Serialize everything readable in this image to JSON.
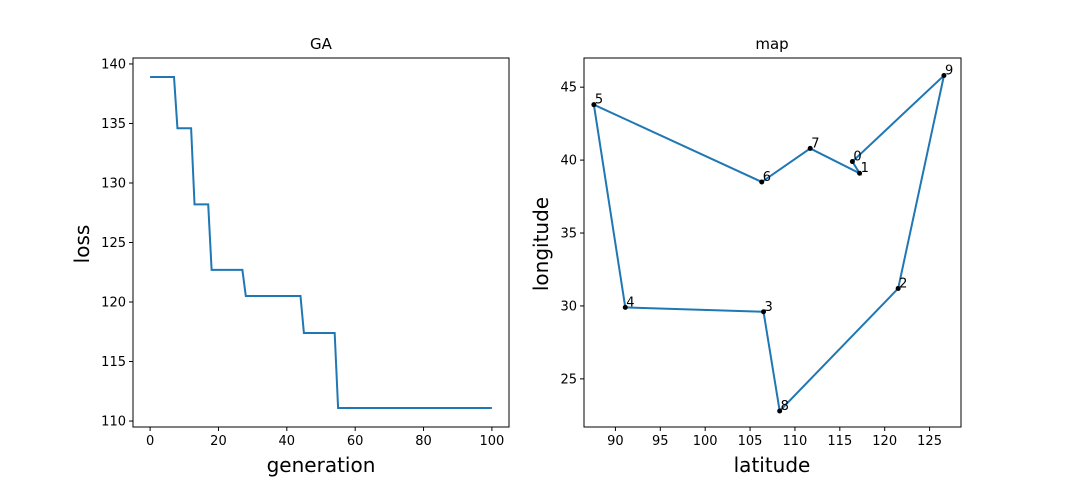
{
  "chart_data": [
    {
      "type": "line",
      "title": "GA",
      "xlabel": "generation",
      "ylabel": "loss",
      "xlim": [
        -5,
        105
      ],
      "ylim": [
        109.5,
        140.5
      ],
      "xticks": [
        0,
        20,
        40,
        60,
        80,
        100
      ],
      "yticks": [
        110,
        115,
        120,
        125,
        130,
        135,
        140
      ],
      "series": [
        {
          "color": "#1f77b4",
          "step": "post",
          "x": [
            0,
            7,
            8,
            12,
            13,
            17,
            18,
            27,
            28,
            44,
            45,
            54,
            55,
            100
          ],
          "y": [
            138.9,
            138.9,
            134.6,
            134.6,
            128.2,
            128.2,
            122.7,
            122.7,
            120.5,
            120.5,
            117.4,
            117.4,
            111.1,
            111.1
          ]
        }
      ]
    },
    {
      "type": "line",
      "title": "map",
      "xlabel": "latitude",
      "ylabel": "longitude",
      "xlim": [
        86.5,
        128.5
      ],
      "ylim": [
        21.7,
        47.0
      ],
      "xticks": [
        90,
        95,
        100,
        105,
        110,
        115,
        120,
        125
      ],
      "yticks": [
        25,
        30,
        35,
        40,
        45
      ],
      "points": [
        {
          "label": "0",
          "x": 116.4,
          "y": 39.9
        },
        {
          "label": "1",
          "x": 117.2,
          "y": 39.1
        },
        {
          "label": "2",
          "x": 121.5,
          "y": 31.2
        },
        {
          "label": "3",
          "x": 106.5,
          "y": 29.6
        },
        {
          "label": "4",
          "x": 91.1,
          "y": 29.9
        },
        {
          "label": "5",
          "x": 87.6,
          "y": 43.8
        },
        {
          "label": "6",
          "x": 106.3,
          "y": 38.5
        },
        {
          "label": "7",
          "x": 111.7,
          "y": 40.8
        },
        {
          "label": "8",
          "x": 108.3,
          "y": 22.8
        },
        {
          "label": "9",
          "x": 126.6,
          "y": 45.8
        }
      ],
      "route": [
        0,
        9,
        2,
        8,
        3,
        4,
        5,
        6,
        7,
        1,
        0
      ],
      "series_color": "#1f77b4"
    }
  ]
}
